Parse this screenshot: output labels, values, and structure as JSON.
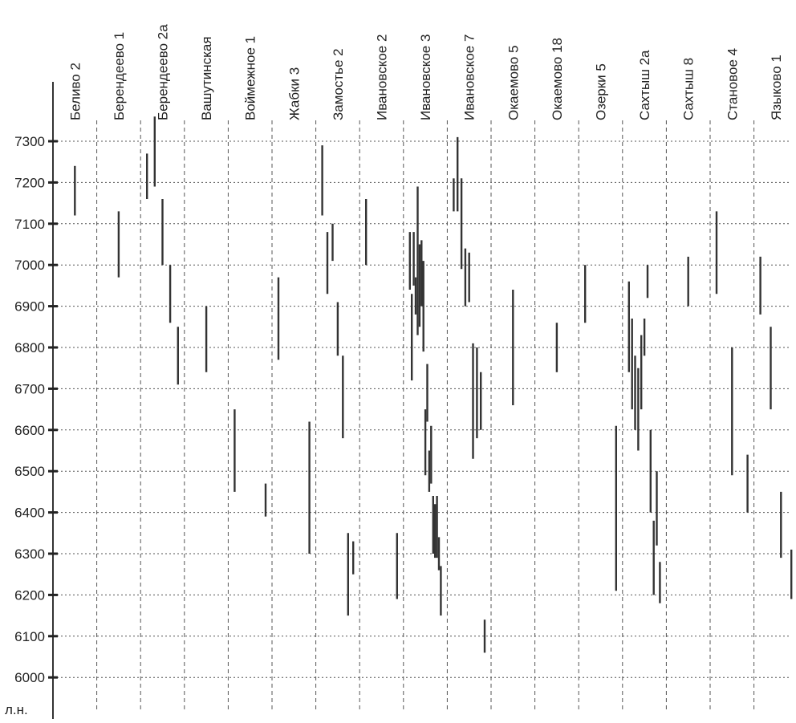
{
  "chart_data": {
    "type": "range",
    "title": "",
    "ylabel": "л.н.",
    "ylim": [
      6000,
      7300
    ],
    "y_ticks": [
      7300,
      7200,
      7100,
      7000,
      6900,
      6800,
      6700,
      6600,
      6500,
      6400,
      6300,
      6200,
      6100,
      6000
    ],
    "grid": true,
    "categories": [
      "Беливо 2",
      "Берендеево 1",
      "Берендеево 2а",
      "Вашутинская",
      "Воймежное 1",
      "Жабки 3",
      "Замостье 2",
      "Ивановское 2",
      "Ивановское 3",
      "Ивановское 7",
      "Окаемово 5",
      "Окаемово 18",
      "Озерки 5",
      "Сахтыш 2а",
      "Сахтыш 8",
      "Становое 4",
      "Языково 1"
    ],
    "ranges": [
      {
        "category": "Беливо 2",
        "intervals": [
          [
            7120,
            7240
          ]
        ]
      },
      {
        "category": "Берендеево 1",
        "intervals": [
          [
            6970,
            7130
          ]
        ]
      },
      {
        "category": "Берендеево 2а",
        "intervals": [
          [
            7160,
            7270
          ],
          [
            7190,
            7360
          ],
          [
            7000,
            7160
          ],
          [
            6860,
            7000
          ],
          [
            6710,
            6850
          ]
        ]
      },
      {
        "category": "Вашутинская",
        "intervals": [
          [
            6740,
            6900
          ]
        ]
      },
      {
        "category": "Воймежное 1",
        "intervals": [
          [
            6450,
            6650
          ],
          [
            6390,
            6470
          ]
        ]
      },
      {
        "category": "Жабки 3",
        "intervals": [
          [
            6770,
            6970
          ],
          [
            6300,
            6620
          ]
        ]
      },
      {
        "category": "Замостье 2",
        "intervals": [
          [
            7120,
            7290
          ],
          [
            6930,
            7080
          ],
          [
            7010,
            7100
          ],
          [
            6780,
            6910
          ],
          [
            6580,
            6780
          ],
          [
            6150,
            6350
          ],
          [
            6250,
            6330
          ]
        ]
      },
      {
        "category": "Ивановское 2",
        "intervals": [
          [
            7000,
            7160
          ],
          [
            6190,
            6350
          ]
        ]
      },
      {
        "category": "Ивановское 3",
        "intervals": [
          [
            6940,
            7080
          ],
          [
            6720,
            6930
          ],
          [
            6950,
            7080
          ],
          [
            6880,
            6970
          ],
          [
            6830,
            7190
          ],
          [
            6850,
            7050
          ],
          [
            6900,
            7060
          ],
          [
            6790,
            7010
          ],
          [
            6490,
            6650
          ],
          [
            6620,
            6760
          ],
          [
            6450,
            6550
          ],
          [
            6470,
            6610
          ],
          [
            6300,
            6440
          ],
          [
            6290,
            6420
          ],
          [
            6290,
            6440
          ],
          [
            6260,
            6340
          ],
          [
            6150,
            6270
          ]
        ]
      },
      {
        "category": "Ивановское 7",
        "intervals": [
          [
            7130,
            7210
          ],
          [
            7130,
            7310
          ],
          [
            6990,
            7210
          ],
          [
            6900,
            7040
          ],
          [
            6910,
            7030
          ],
          [
            6530,
            6810
          ],
          [
            6580,
            6800
          ],
          [
            6600,
            6740
          ],
          [
            6060,
            6140
          ]
        ]
      },
      {
        "category": "Окаемово 5",
        "intervals": [
          [
            6660,
            6940
          ]
        ]
      },
      {
        "category": "Окаемово 18",
        "intervals": [
          [
            6740,
            6860
          ]
        ]
      },
      {
        "category": "Озерки 5",
        "intervals": [
          [
            6860,
            7000
          ],
          [
            6210,
            6610
          ]
        ]
      },
      {
        "category": "Сахтыш 2а",
        "intervals": [
          [
            6740,
            6960
          ],
          [
            6650,
            6870
          ],
          [
            6600,
            6780
          ],
          [
            6550,
            6750
          ],
          [
            6650,
            6830
          ],
          [
            6780,
            6870
          ],
          [
            6920,
            7000
          ],
          [
            6400,
            6600
          ],
          [
            6200,
            6380
          ],
          [
            6320,
            6500
          ],
          [
            6180,
            6280
          ]
        ]
      },
      {
        "category": "Сахтыш 8",
        "intervals": [
          [
            6900,
            7020
          ]
        ]
      },
      {
        "category": "Становое 4",
        "intervals": [
          [
            6930,
            7130
          ],
          [
            6490,
            6800
          ],
          [
            6400,
            6540
          ]
        ]
      },
      {
        "category": "Языково 1",
        "intervals": [
          [
            6880,
            7020
          ],
          [
            6650,
            6850
          ],
          [
            6290,
            6450
          ],
          [
            6190,
            6310
          ]
        ]
      }
    ]
  }
}
